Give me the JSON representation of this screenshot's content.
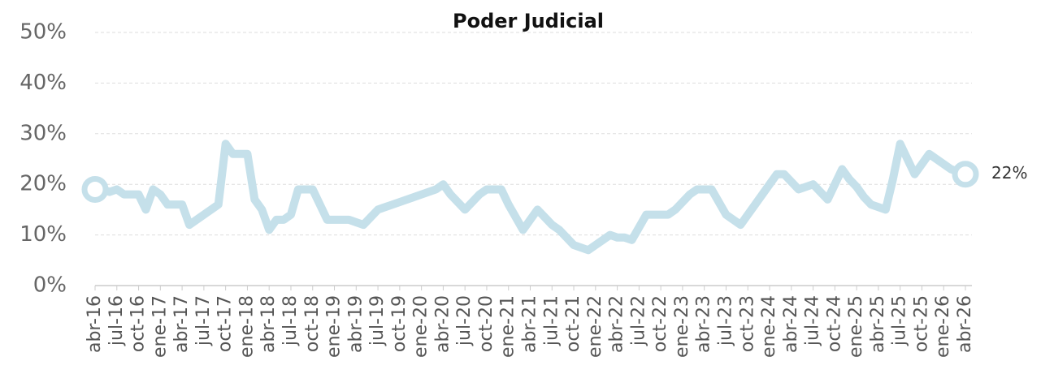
{
  "chart_data": {
    "type": "line",
    "title": "Poder Judicial",
    "categories": [
      "abr-16",
      null,
      null,
      "jul-16",
      null,
      null,
      "oct-16",
      null,
      null,
      "ene-17",
      null,
      null,
      "abr-17",
      null,
      null,
      "jul-17",
      null,
      null,
      "oct-17",
      null,
      null,
      "ene-18",
      null,
      null,
      "abr-18",
      null,
      null,
      "jul-18",
      null,
      null,
      "oct-18",
      null,
      null,
      "ene-19",
      null,
      null,
      "abr-19",
      null,
      null,
      "jul-19",
      null,
      null,
      "oct-19",
      null,
      null,
      "ene-20",
      null,
      null,
      "abr-20",
      null,
      null,
      "jul-20",
      null,
      null,
      "oct-20",
      null,
      null,
      "ene-21",
      null,
      null,
      "abr-21",
      null,
      null,
      "jul-21",
      null,
      null,
      "oct-21",
      null,
      null,
      "ene-22",
      null,
      null,
      "abr-22",
      null,
      null,
      "jul-22",
      null,
      null,
      "oct-22",
      null,
      null,
      "ene-23",
      null,
      null,
      "abr-23",
      null,
      null,
      "jul-23",
      null,
      null,
      "oct-23",
      null,
      null,
      "ene-24",
      null,
      null,
      "abr-24",
      null,
      null,
      "jul-24",
      null,
      null,
      "oct-24",
      null,
      null,
      "ene-25",
      null,
      null,
      "abr-25",
      null,
      null,
      "jul-25",
      null,
      null,
      "oct-25",
      null,
      null,
      "ene-26",
      null,
      null,
      "abr-26"
    ],
    "values": [
      19,
      19,
      18.5,
      19,
      18,
      18,
      18,
      15,
      19,
      18,
      16,
      16,
      16,
      12,
      13,
      14,
      15,
      16,
      28,
      26,
      26,
      26,
      17,
      15,
      11,
      13,
      13,
      14,
      19,
      19,
      19,
      16,
      13,
      13,
      13,
      13,
      12.5,
      12,
      13.5,
      15,
      15.5,
      16,
      16.5,
      17,
      17.5,
      18,
      18.5,
      19,
      20,
      18,
      16.5,
      15,
      16.5,
      18,
      19,
      19,
      19,
      16,
      13.5,
      11,
      13,
      15,
      13.5,
      12,
      11,
      9.5,
      8,
      7.5,
      7,
      8,
      9,
      10,
      9.5,
      9.5,
      9,
      11.5,
      14,
      14,
      14,
      14,
      15,
      16.5,
      18,
      19,
      19,
      19,
      16.5,
      14,
      13,
      12,
      14,
      16,
      18,
      20,
      22,
      22,
      20.5,
      19,
      19.5,
      20,
      18.5,
      17,
      20,
      23,
      21,
      19.5,
      17.5,
      16,
      15.5,
      15,
      21,
      28,
      25,
      22,
      24,
      26,
      25,
      24,
      23,
      22.5,
      22
    ],
    "value_labels": [
      null,
      null,
      null,
      null,
      null,
      null,
      null,
      null,
      null,
      null,
      null,
      null,
      null,
      null,
      null,
      null,
      null,
      null,
      null,
      null,
      null,
      null,
      null,
      null,
      null,
      null,
      null,
      null,
      null,
      null,
      null,
      null,
      null,
      null,
      null,
      null,
      null,
      null,
      null,
      null,
      null,
      null,
      null,
      null,
      null,
      null,
      null,
      null,
      null,
      null,
      null,
      null,
      null,
      null,
      null,
      null,
      null,
      null,
      null,
      null,
      null,
      null,
      null,
      null,
      null,
      null,
      null,
      null,
      null,
      null,
      null,
      null,
      null,
      null,
      null,
      null,
      null,
      null,
      null,
      null,
      null,
      null,
      null,
      null,
      null,
      null,
      null,
      null,
      null,
      null,
      null,
      null,
      null,
      null,
      null,
      null,
      null,
      null,
      null,
      null,
      null,
      null,
      null,
      null,
      null,
      null,
      null,
      null,
      null,
      null,
      null,
      null,
      null,
      null,
      null,
      null,
      null,
      null,
      null,
      null,
      "22%"
    ],
    "color": "#c5e0ea",
    "ylim": [
      0,
      50
    ],
    "yticks": [
      {
        "value": 0,
        "label": "0%"
      },
      {
        "value": 10,
        "label": "10%"
      },
      {
        "value": 20,
        "label": "20%"
      },
      {
        "value": 30,
        "label": "30%"
      },
      {
        "value": 40,
        "label": "40%"
      },
      {
        "value": 50,
        "label": "50%"
      }
    ],
    "grid": true
  }
}
